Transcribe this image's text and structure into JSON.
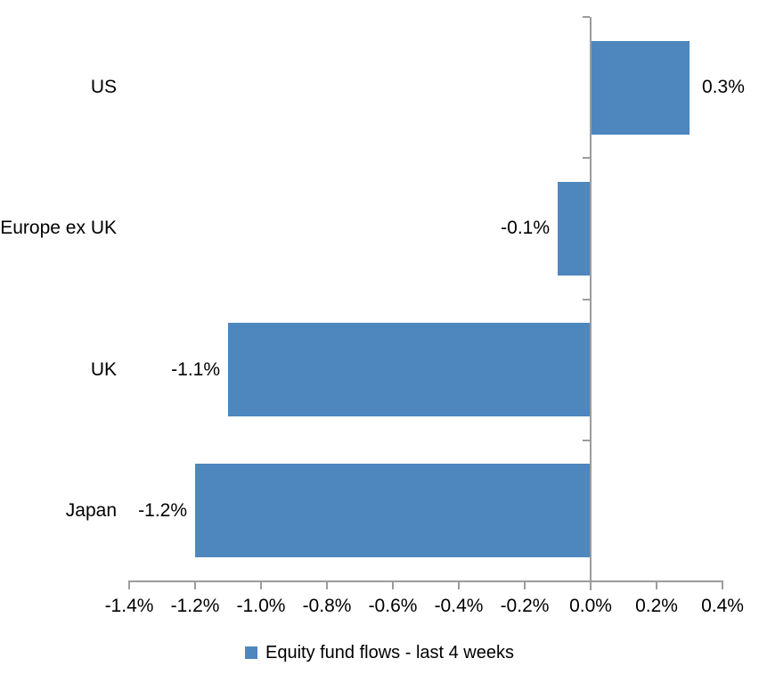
{
  "chart_data": {
    "type": "bar",
    "orientation": "horizontal",
    "title": "",
    "xlabel": "",
    "ylabel": "",
    "series_name": "Equity fund flows - last 4 weeks",
    "categories": [
      "US",
      "Europe ex UK",
      "UK",
      "Japan"
    ],
    "values": [
      0.3,
      -0.1,
      -1.1,
      -1.2
    ],
    "data_labels": [
      "0.3%",
      "-0.1%",
      "-1.1%",
      "-1.2%"
    ],
    "xlim": [
      -1.4,
      0.4
    ],
    "x_ticks": [
      {
        "value": -1.4,
        "label": "-1.4%"
      },
      {
        "value": -1.2,
        "label": "-1.2%"
      },
      {
        "value": -1.0,
        "label": "-1.0%"
      },
      {
        "value": -0.8,
        "label": "-0.8%"
      },
      {
        "value": -0.6,
        "label": "-0.6%"
      },
      {
        "value": -0.4,
        "label": "-0.4%"
      },
      {
        "value": -0.2,
        "label": "-0.2%"
      },
      {
        "value": 0.0,
        "label": "0.0%"
      },
      {
        "value": 0.2,
        "label": "0.2%"
      },
      {
        "value": 0.4,
        "label": "0.4%"
      }
    ],
    "grid": false,
    "legend_position": "bottom",
    "bar_color": "#4d87be",
    "axis_color": "#9c9c9c",
    "text_color": "#000000"
  }
}
